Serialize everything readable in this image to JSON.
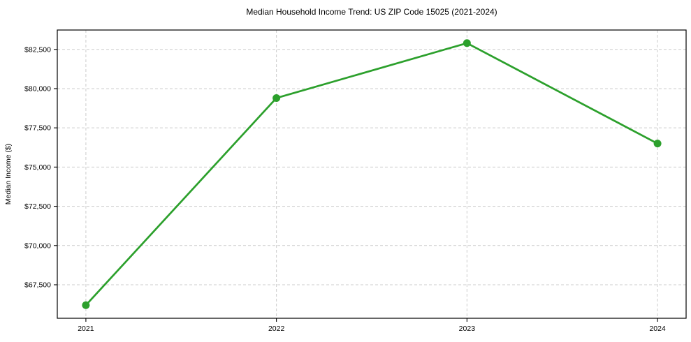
{
  "page": {
    "background_color": "#ffffff"
  },
  "chart_data": {
    "type": "line",
    "title": "Median Household Income Trend: US ZIP Code 15025 (2021-2024)",
    "xlabel": "",
    "ylabel": "Median Income ($)",
    "categories": [
      "2021",
      "2022",
      "2023",
      "2024"
    ],
    "series": [
      {
        "name": "Median Household Income",
        "values": [
          66200,
          79400,
          82900,
          76500
        ],
        "color": "#2ca02c",
        "marker": "circle"
      }
    ],
    "yticks": [
      67500,
      70000,
      72500,
      75000,
      77500,
      80000,
      82500
    ],
    "ytick_labels": [
      "$67,500",
      "$70,000",
      "$72,500",
      "$75,000",
      "$77,500",
      "$80,000",
      "$82,500"
    ],
    "ylim": [
      65365,
      83735
    ],
    "x_margin_frac": 0.05,
    "grid": true,
    "grid_style": "dashed",
    "legend": null,
    "colors": {
      "line": "#2ca02c",
      "grid": "#cccccc",
      "axis": "#000000",
      "text": "#000000",
      "background": "#ffffff"
    }
  }
}
